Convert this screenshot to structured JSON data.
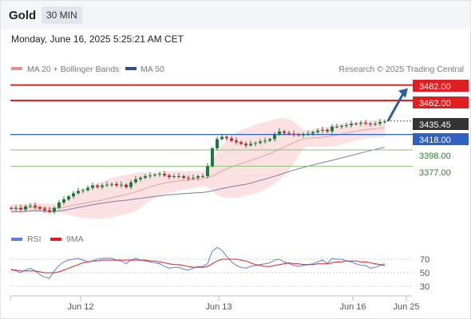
{
  "header": {
    "title": "Gold",
    "interval": "30 MIN",
    "datetime": "Monday, June 16, 2025 5:25:21 AM CET"
  },
  "legend": {
    "ma20_bb": "MA 20 + Bollinger Bands",
    "ma50": "MA 50",
    "credit": "Research © 2025 Trading Central",
    "rsi": "RSI",
    "ma9": "9MA"
  },
  "colors": {
    "up": "#1e7a3c",
    "down": "#b52a2a",
    "bollinger": "#f7c9c9",
    "ma20": "#e8a0a0",
    "ma50": "#7a7fa8",
    "red_level": "#e02020",
    "blue_level": "#3060c0",
    "green_level": "#8bbf7a",
    "current": "#333333",
    "arrow": "#2f5c9a",
    "rsi": "#5a7fe0",
    "rsi_ma": "#e02020"
  },
  "levels": [
    {
      "label": "3482.00",
      "kind": "resistance",
      "value": 3482.0
    },
    {
      "label": "3462.00",
      "kind": "resistance",
      "value": 3462.0
    },
    {
      "label": "3435.45",
      "kind": "current",
      "value": 3435.45
    },
    {
      "label": "3418.00",
      "kind": "pivot",
      "value": 3418.0
    },
    {
      "label": "3398.00",
      "kind": "support",
      "value": 3398.0
    },
    {
      "label": "3377.00",
      "kind": "support",
      "value": 3377.0
    }
  ],
  "rsi_ticks": [
    "70",
    "50",
    "30"
  ],
  "x_labels": [
    "Jun 12",
    "Jun 13",
    "Jun 16",
    "Jun 25"
  ],
  "chart_data": {
    "type": "candlestick",
    "xlabels": [
      "Jun 12",
      "Jun 13",
      "Jun 16",
      "Jun 25"
    ],
    "close_path": [
      3322,
      3323,
      3321,
      3325,
      3326,
      3324,
      3322,
      3320,
      3318,
      3323,
      3330,
      3334,
      3338,
      3342,
      3345,
      3346,
      3349,
      3352,
      3350,
      3352,
      3353,
      3354,
      3352,
      3353,
      3350,
      3356,
      3360,
      3362,
      3364,
      3365,
      3366,
      3367,
      3365,
      3363,
      3364,
      3364,
      3362,
      3361,
      3362,
      3364,
      3364,
      3377,
      3400,
      3412,
      3415,
      3413,
      3410,
      3408,
      3406,
      3404,
      3406,
      3407,
      3409,
      3410,
      3412,
      3418,
      3422,
      3420,
      3419,
      3418,
      3417,
      3418,
      3419,
      3421,
      3423,
      3424,
      3422,
      3428,
      3428,
      3429,
      3430,
      3432,
      3432,
      3433,
      3432,
      3431,
      3432,
      3434,
      3435
    ],
    "price_range": [
      3300,
      3495
    ],
    "rsi_range": [
      20,
      80
    ],
    "rsi_values": [
      54,
      52,
      50,
      53,
      55,
      52,
      48,
      45,
      44,
      52,
      58,
      62,
      64,
      65,
      66,
      64,
      62,
      63,
      65,
      66,
      66,
      66,
      64,
      63,
      60,
      64,
      66,
      64,
      63,
      62,
      61,
      60,
      57,
      55,
      56,
      56,
      54,
      53,
      55,
      57,
      57,
      60,
      74,
      78,
      75,
      68,
      62,
      58,
      56,
      55,
      57,
      58,
      59,
      60,
      61,
      64,
      65,
      62,
      60,
      58,
      57,
      58,
      59,
      60,
      62,
      64,
      60,
      66,
      65,
      65,
      63,
      62,
      60,
      58,
      58,
      55,
      56,
      58,
      60
    ],
    "rsi_ma_values": [
      53,
      53,
      52,
      52,
      52,
      52,
      51,
      50,
      50,
      50,
      51,
      53,
      55,
      57,
      59,
      61,
      62,
      63,
      63,
      64,
      64,
      64,
      64,
      64,
      64,
      64,
      64,
      64,
      64,
      63,
      63,
      62,
      61,
      60,
      59,
      59,
      58,
      57,
      56,
      56,
      56,
      57,
      60,
      63,
      65,
      65,
      65,
      65,
      64,
      63,
      61,
      59,
      58,
      57,
      57,
      58,
      59,
      60,
      61,
      60,
      60,
      59,
      59,
      59,
      60,
      60,
      60,
      61,
      62,
      62,
      63,
      63,
      63,
      62,
      62,
      61,
      60,
      59,
      58
    ]
  }
}
